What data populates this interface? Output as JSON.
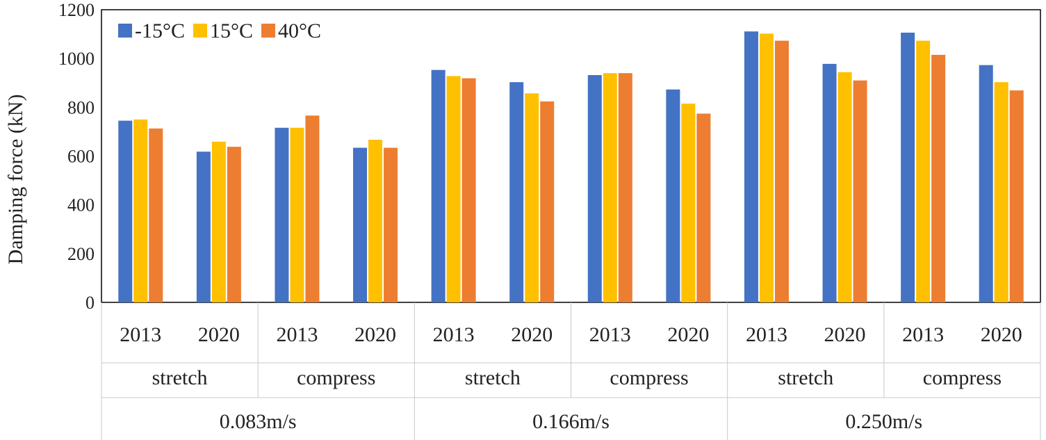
{
  "chart_data": {
    "type": "bar",
    "title": "",
    "xlabel": "",
    "ylabel": "Damping force (kN)",
    "ylim": [
      0,
      1200
    ],
    "yticks": [
      0,
      200,
      400,
      600,
      800,
      1000,
      1200
    ],
    "grid": false,
    "legend_position": "top-left",
    "categories": [
      {
        "year": "2013",
        "mode": "stretch",
        "velocity": "0.083m/s"
      },
      {
        "year": "2020",
        "mode": "stretch",
        "velocity": "0.083m/s"
      },
      {
        "year": "2013",
        "mode": "compress",
        "velocity": "0.083m/s"
      },
      {
        "year": "2020",
        "mode": "compress",
        "velocity": "0.083m/s"
      },
      {
        "year": "2013",
        "mode": "stretch",
        "velocity": "0.166m/s"
      },
      {
        "year": "2020",
        "mode": "stretch",
        "velocity": "0.166m/s"
      },
      {
        "year": "2013",
        "mode": "compress",
        "velocity": "0.166m/s"
      },
      {
        "year": "2020",
        "mode": "compress",
        "velocity": "0.166m/s"
      },
      {
        "year": "2013",
        "mode": "stretch",
        "velocity": "0.250m/s"
      },
      {
        "year": "2020",
        "mode": "stretch",
        "velocity": "0.250m/s"
      },
      {
        "year": "2013",
        "mode": "compress",
        "velocity": "0.250m/s"
      },
      {
        "year": "2020",
        "mode": "compress",
        "velocity": "0.250m/s"
      }
    ],
    "mode_groups": [
      "stretch",
      "compress",
      "stretch",
      "compress",
      "stretch",
      "compress"
    ],
    "velocity_groups": [
      "0.083m/s",
      "0.166m/s",
      "0.250m/s"
    ],
    "series": [
      {
        "name": "-15°C",
        "color": "#4472C4",
        "values": [
          745,
          618,
          716,
          634,
          953,
          903,
          932,
          873,
          1111,
          978,
          1106,
          973
        ]
      },
      {
        "name": "15°C",
        "color": "#FFC000",
        "values": [
          750,
          659,
          716,
          667,
          928,
          857,
          940,
          815,
          1102,
          944,
          1073,
          903
        ]
      },
      {
        "name": "40°C",
        "color": "#ED7D31",
        "values": [
          713,
          638,
          766,
          634,
          919,
          824,
          940,
          774,
          1073,
          910,
          1015,
          869
        ]
      }
    ]
  }
}
